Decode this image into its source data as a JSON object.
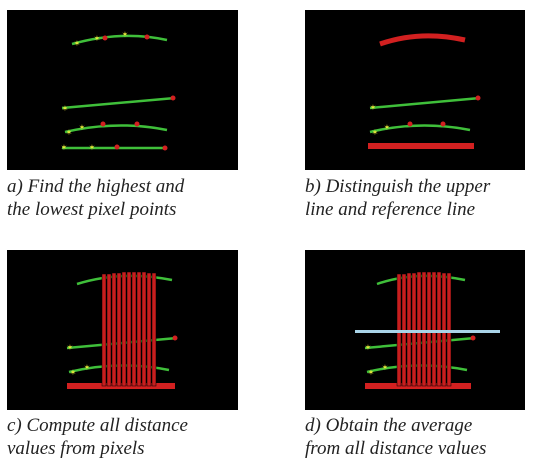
{
  "panels": [
    {
      "id": "a",
      "caption_line1": "a) Find the highest and",
      "caption_line2": "the lowest pixel points"
    },
    {
      "id": "b",
      "caption_line1": "b) Distinguish the upper",
      "caption_line2": "line and reference line"
    },
    {
      "id": "c",
      "caption_line1": "c) Compute all distance",
      "caption_line2": "values from pixels"
    },
    {
      "id": "d",
      "caption_line1": "d) Obtain the average",
      "caption_line2": "from all distance values"
    }
  ],
  "colors": {
    "background": "#000000",
    "line_green": "#3fbf3a",
    "marker_yellow": "#e8e83a",
    "marker_red": "#d22020",
    "distance_red": "#c81e1e",
    "average_line": "#a9d4e8"
  }
}
